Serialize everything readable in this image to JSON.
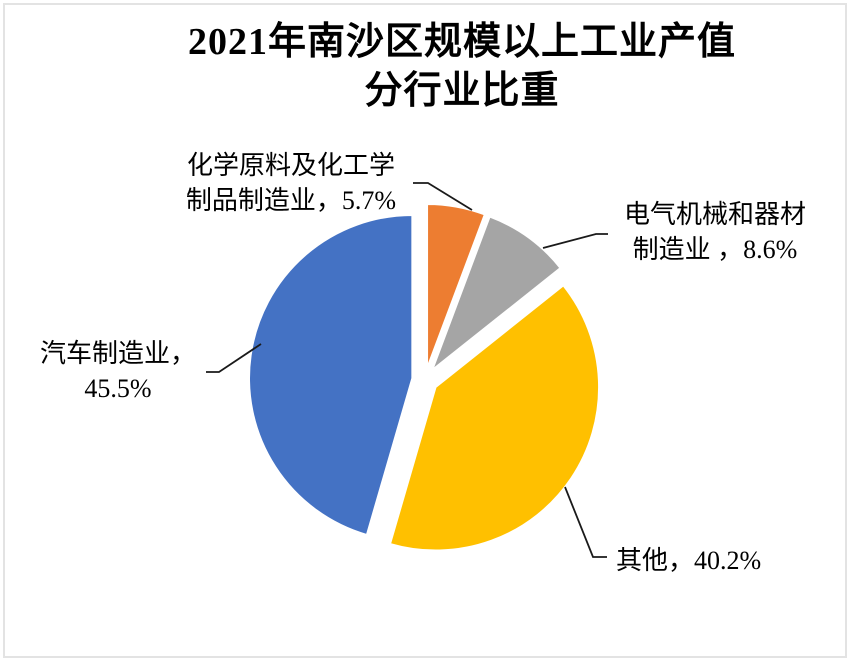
{
  "frame": {
    "background": "#FFFFFF",
    "border_color": "#E3E3E3"
  },
  "chart_data": {
    "type": "pie",
    "title": "2021年南沙区规模以上工业产值分行业比重",
    "title_lines": [
      "2021年南沙区规模以上工业产值",
      "分行业比重"
    ],
    "direction": "clockwise",
    "start_angle_deg": 0,
    "exploded": true,
    "legend_position": "none",
    "label_text_color": "#000000",
    "leader_line_color": "#1A1A1A",
    "categories": [
      "化学原料及化工学制品制造业",
      "电气机械和器材制造业",
      "其他",
      "汽车制造业"
    ],
    "values": [
      5.7,
      8.6,
      40.2,
      45.5
    ],
    "slices": [
      {
        "name": "化学原料及化工学制品制造业",
        "value_pct": 5.7,
        "color": "#ED7D31",
        "label_lines": [
          "化学原料及化工学",
          "制品制造业，5.7%"
        ]
      },
      {
        "name": "电气机械和器材制造业",
        "value_pct": 8.6,
        "color": "#A5A5A5",
        "label_lines": [
          "电气机械和器材",
          "制造业 ，8.6%"
        ]
      },
      {
        "name": "其他",
        "value_pct": 40.2,
        "color": "#FFC000",
        "label_lines": [
          "其他，40.2%"
        ]
      },
      {
        "name": "汽车制造业",
        "value_pct": 45.5,
        "color": "#4472C4",
        "label_lines": [
          "汽车制造业，",
          "45.5%"
        ]
      }
    ]
  }
}
